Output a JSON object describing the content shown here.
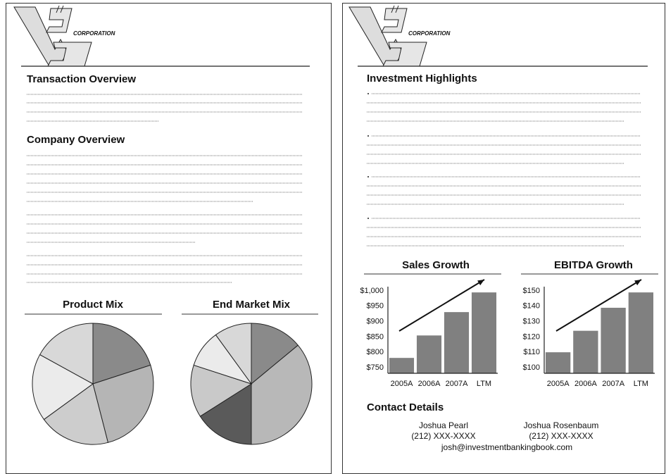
{
  "logo": {
    "text": "CORPORATION"
  },
  "left_page": {
    "sections": [
      {
        "title": "Transaction Overview"
      },
      {
        "title": "Company Overview"
      }
    ]
  },
  "right_page": {
    "sections": [
      {
        "title": "Investment Highlights"
      }
    ],
    "contact": {
      "title": "Contact Details",
      "people": [
        {
          "name": "Joshua Pearl",
          "phone": "(212) XXX-XXXX"
        },
        {
          "name": "Joshua Rosenbaum",
          "phone": "(212) XXX-XXXX"
        }
      ],
      "email": "josh@investmentbankingbook.com"
    }
  },
  "chart_data": [
    {
      "type": "pie",
      "title": "Product Mix",
      "values": [
        20,
        26,
        19,
        18,
        17
      ],
      "colors": [
        "#8a8a8a",
        "#b5b5b5",
        "#cdcdcd",
        "#ebebeb",
        "#d8d8d8"
      ]
    },
    {
      "type": "pie",
      "title": "End Market Mix",
      "values": [
        14,
        36,
        16,
        14,
        10,
        10
      ],
      "colors": [
        "#8a8a8a",
        "#b8b8b8",
        "#5a5a5a",
        "#c9c9c9",
        "#ebebeb",
        "#d8d8d8"
      ]
    },
    {
      "type": "bar",
      "title": "Sales Growth",
      "categories": [
        "2005A",
        "2006A",
        "2007A",
        "LTM"
      ],
      "values": [
        782,
        855,
        931,
        995
      ],
      "color": "#808080",
      "ylim": [
        732,
        1000
      ],
      "yticks": [
        {
          "value": 750,
          "label": "$750"
        },
        {
          "value": 800,
          "label": "$800"
        },
        {
          "value": 850,
          "label": "$850"
        },
        {
          "value": 900,
          "label": "$900"
        },
        {
          "value": 950,
          "label": "$950"
        },
        {
          "value": 1000,
          "label": "$1,000"
        }
      ]
    },
    {
      "type": "bar",
      "title": "EBITDA Growth",
      "categories": [
        "2005A",
        "2006A",
        "2007A",
        "LTM"
      ],
      "values": [
        110,
        124,
        139,
        149
      ],
      "color": "#808080",
      "ylim": [
        96.3,
        150
      ],
      "yticks": [
        {
          "value": 100,
          "label": "$100"
        },
        {
          "value": 110,
          "label": "$110"
        },
        {
          "value": 120,
          "label": "$120"
        },
        {
          "value": 130,
          "label": "$130"
        },
        {
          "value": 140,
          "label": "$140"
        },
        {
          "value": 150,
          "label": "$150"
        }
      ]
    }
  ]
}
